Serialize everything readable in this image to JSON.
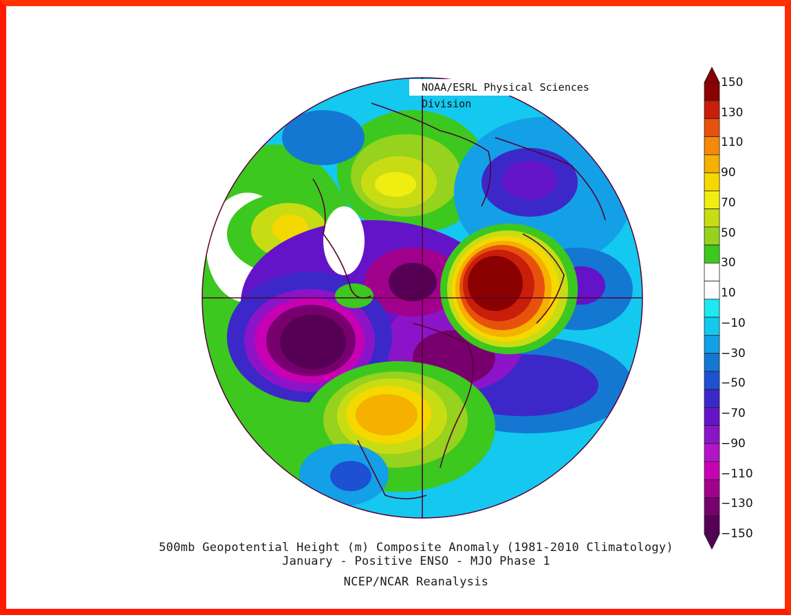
{
  "credit": "NOAA/ESRL Physical Sciences Division",
  "caption": {
    "line1": "500mb Geopotential Height (m) Composite Anomaly (1981-2010 Climatology)",
    "line2": "January - Positive ENSO - MJO Phase 1",
    "line3": "NCEP/NCAR Reanalysis"
  },
  "colorbar": {
    "labels": [
      "150",
      "130",
      "110",
      "90",
      "70",
      "50",
      "30",
      "10",
      "−10",
      "−30",
      "−50",
      "−70",
      "−90",
      "−110",
      "−130",
      "−150"
    ],
    "colors": [
      "#8b0000",
      "#c81e0a",
      "#e8500e",
      "#f58a0a",
      "#f5b000",
      "#f5d800",
      "#f0ee10",
      "#c8dc14",
      "#96d21e",
      "#3cc81e",
      "#ffffff",
      "#ffffff",
      "#1ee8f0",
      "#14c8f0",
      "#14a0e6",
      "#1478d2",
      "#1e50d2",
      "#3c28c8",
      "#6414c8",
      "#8c14c8",
      "#b414c8",
      "#c800b4",
      "#a0008c",
      "#78006e",
      "#550055"
    ]
  },
  "colors": {
    "frame": "#ff1a00",
    "grid": "#550033",
    "background": "#ffffff"
  }
}
